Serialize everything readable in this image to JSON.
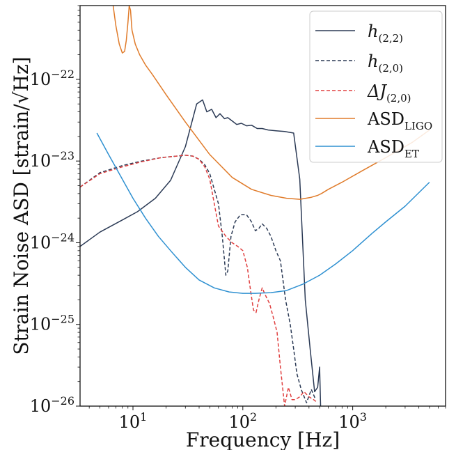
{
  "chart_data": {
    "type": "line",
    "xscale": "log",
    "yscale": "log",
    "xlim": [
      3.3,
      7000
    ],
    "ylim": [
      1e-26,
      8e-22
    ],
    "xlabel": "Frequency [Hz]",
    "ylabel": "Strain Noise ASD [strain/√Hz]",
    "x_ticks": [
      {
        "value": 10,
        "base": "10",
        "exp": "1"
      },
      {
        "value": 100,
        "base": "10",
        "exp": "2"
      },
      {
        "value": 1000,
        "base": "10",
        "exp": "3"
      }
    ],
    "y_ticks": [
      {
        "value": 1e-26,
        "base": "10",
        "exp": "−26"
      },
      {
        "value": 1e-25,
        "base": "10",
        "exp": "−25"
      },
      {
        "value": 1e-24,
        "base": "10",
        "exp": "−24"
      },
      {
        "value": 1e-23,
        "base": "10",
        "exp": "−23"
      },
      {
        "value": 1e-22,
        "base": "10",
        "exp": "−22"
      }
    ],
    "grid": false,
    "legend_position": "top-right",
    "series": [
      {
        "name": "h_(2,2)",
        "legend_main": "h",
        "legend_sub": "(2,2)",
        "italic": true,
        "color": "#2b3a55",
        "dash": "solid",
        "x": [
          3.3,
          5,
          8,
          11,
          16,
          22,
          30,
          38,
          43,
          47,
          52,
          57,
          62,
          68,
          73,
          80,
          88,
          97,
          108,
          120,
          135,
          150,
          170,
          200,
          240,
          290,
          330,
          370,
          410,
          450,
          480,
          500,
          510
        ],
        "y": [
          9e-25,
          1.35e-24,
          1.9e-24,
          2.4e-24,
          3.5e-24,
          5.8e-24,
          1.5e-23,
          5e-23,
          5.6e-23,
          4e-23,
          4.3e-23,
          3.4e-23,
          3.8e-23,
          3.3e-23,
          3.4e-23,
          3.1e-23,
          2.8e-23,
          2.9e-23,
          2.7e-23,
          2.75e-23,
          2.5e-23,
          2.5e-23,
          2.4e-23,
          2.35e-23,
          2.3e-23,
          2.2e-23,
          6e-24,
          2e-25,
          5e-26,
          1.5e-26,
          1.7e-26,
          3e-26,
          1e-26
        ]
      },
      {
        "name": "h_(2,0)",
        "legend_main": "h",
        "legend_sub": "(2,0)",
        "italic": true,
        "color": "#2b3a55",
        "dash": "dashed",
        "x": [
          3.3,
          5,
          8,
          12,
          18,
          25,
          30,
          35,
          40,
          45,
          50,
          55,
          60,
          65,
          70,
          73,
          78,
          85,
          95,
          108,
          120,
          130,
          140,
          150,
          165,
          180,
          200,
          220,
          245,
          270,
          290,
          310,
          340,
          380,
          420,
          460
        ],
        "y": [
          4.8e-24,
          7.2e-24,
          8.8e-24,
          1e-23,
          1.1e-23,
          1.15e-23,
          1.18e-23,
          1.15e-23,
          1.05e-23,
          9e-24,
          7e-24,
          4.5e-24,
          3e-24,
          1.2e-24,
          4e-25,
          4.5e-25,
          1.2e-24,
          1.8e-24,
          2.2e-24,
          2.2e-24,
          1.8e-24,
          1.4e-24,
          1.5e-24,
          1.7e-24,
          1.5e-24,
          1.2e-24,
          8e-25,
          6e-25,
          2e-25,
          1e-25,
          5e-26,
          2.5e-26,
          1.6e-26,
          1.1e-26,
          1.6e-26,
          1.2e-26
        ]
      },
      {
        "name": "ΔJ_(2,0)",
        "legend_main": "ΔJ",
        "legend_sub": "(2,0)",
        "italic": true,
        "color": "#e04040",
        "dash": "dashed",
        "x": [
          3.3,
          5,
          8,
          12,
          18,
          25,
          30,
          35,
          40,
          45,
          50,
          55,
          60,
          70,
          80,
          90,
          100,
          110,
          118,
          125,
          132,
          140,
          150,
          160,
          175,
          190,
          205,
          220,
          240,
          260,
          280,
          300,
          330,
          360,
          400,
          440,
          480
        ],
        "y": [
          4.8e-24,
          7e-24,
          8.5e-24,
          9.8e-24,
          1.1e-23,
          1.15e-23,
          1.18e-23,
          1.15e-23,
          1.05e-23,
          8.5e-24,
          6e-24,
          3e-24,
          1.6e-24,
          1.2e-24,
          1e-24,
          9e-25,
          8e-25,
          5e-25,
          2.5e-25,
          1.5e-25,
          1.4e-25,
          2e-25,
          2.8e-25,
          2.3e-25,
          1.8e-25,
          1.2e-25,
          8e-26,
          3e-26,
          1e-26,
          1.7e-26,
          1.2e-26,
          1.2e-26,
          1.3e-26,
          1.5e-26,
          1.3e-26,
          1.2e-26,
          1.1e-26
        ]
      },
      {
        "name": "ASD_LIGO",
        "legend_main": "ASD",
        "legend_sub": "LIGO",
        "italic": false,
        "color": "#e07b2a",
        "dash": "solid",
        "x": [
          6.6,
          7,
          7.5,
          8,
          8.4,
          8.7,
          9,
          9.25,
          9.5,
          9.8,
          10.5,
          11.5,
          13,
          15,
          20,
          30,
          50,
          80,
          120,
          180,
          250,
          330,
          420,
          480,
          520,
          600,
          800,
          1200,
          2000,
          3500,
          5000
        ],
        "y": [
          8e-22,
          4.5e-22,
          2.7e-22,
          2.1e-22,
          2.2e-22,
          3e-22,
          5e-22,
          8e-22,
          7e-22,
          4e-22,
          2.7e-22,
          2e-22,
          1.5e-22,
          1.15e-22,
          6.5e-23,
          3e-23,
          1.2e-23,
          6.3e-24,
          4.5e-24,
          3.8e-24,
          3.5e-24,
          3.4e-24,
          3.6e-24,
          3.8e-24,
          4e-24,
          4.5e-24,
          5.5e-24,
          7.5e-24,
          1.1e-23,
          1.7e-23,
          2.4e-23
        ]
      },
      {
        "name": "ASD_ET",
        "legend_main": "ASD",
        "legend_sub": "ET",
        "italic": false,
        "color": "#2e90d1",
        "dash": "solid",
        "x": [
          4.7,
          6,
          8,
          10,
          13,
          17,
          22,
          30,
          40,
          55,
          75,
          100,
          130,
          180,
          250,
          350,
          500,
          700,
          1000,
          1500,
          2000,
          3000,
          5000
        ],
        "y": [
          2.2e-23,
          1.2e-23,
          6e-24,
          3.5e-24,
          2e-24,
          1.2e-24,
          8e-25,
          5e-25,
          3.5e-25,
          2.8e-25,
          2.5e-25,
          2.4e-25,
          2.4e-25,
          2.45e-25,
          2.6e-25,
          3.1e-25,
          4e-25,
          5.5e-25,
          8e-25,
          1.3e-24,
          1.8e-24,
          2.8e-24,
          5.5e-24
        ]
      }
    ]
  }
}
